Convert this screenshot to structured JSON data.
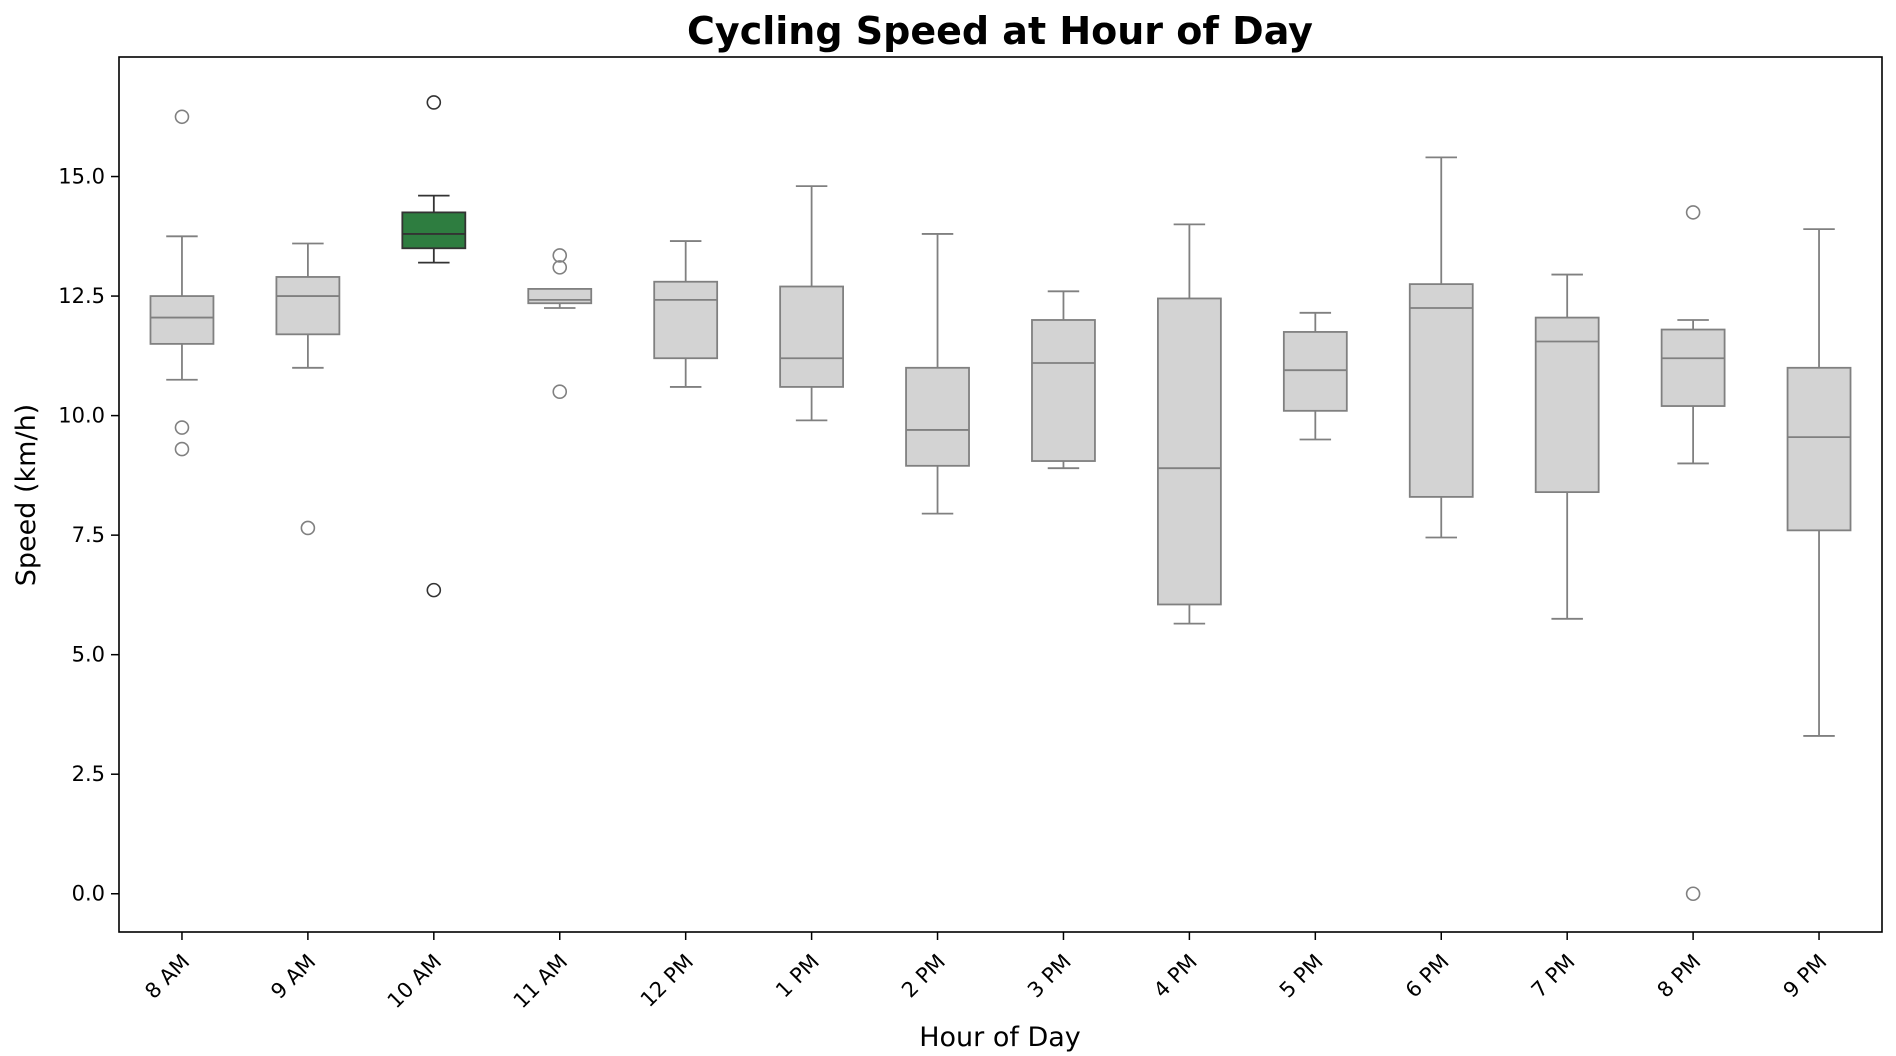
{
  "chart_data": {
    "type": "box",
    "title": "Cycling Speed at Hour of Day",
    "xlabel": "Hour of Day",
    "ylabel": "Speed (km/h)",
    "ylim": [
      -0.8,
      17.5
    ],
    "yticks": [
      "0.0",
      "2.5",
      "5.0",
      "7.5",
      "10.0",
      "12.5",
      "15.0"
    ],
    "grid": false,
    "colors": {
      "default_box": "#d3d3d3",
      "default_line": "#808080",
      "highlight_box": "#2e7d40",
      "highlight_line": "#333333"
    },
    "highlight_category": "10 AM",
    "categories": [
      "8 AM",
      "9 AM",
      "10 AM",
      "11 AM",
      "12 PM",
      "1 PM",
      "2 PM",
      "3 PM",
      "4 PM",
      "5 PM",
      "6 PM",
      "7 PM",
      "8 PM",
      "9 PM"
    ],
    "boxes": [
      {
        "category": "8 AM",
        "whisker_low": 10.75,
        "q1": 11.5,
        "median": 12.05,
        "q3": 12.5,
        "whisker_high": 13.75,
        "outliers": [
          16.25,
          9.75,
          9.3
        ]
      },
      {
        "category": "9 AM",
        "whisker_low": 11.0,
        "q1": 11.7,
        "median": 12.5,
        "q3": 12.9,
        "whisker_high": 13.6,
        "outliers": [
          7.65
        ]
      },
      {
        "category": "10 AM",
        "whisker_low": 13.2,
        "q1": 13.5,
        "median": 13.8,
        "q3": 14.25,
        "whisker_high": 14.6,
        "outliers": [
          16.55,
          6.35
        ]
      },
      {
        "category": "11 AM",
        "whisker_low": 12.25,
        "q1": 12.35,
        "median": 12.42,
        "q3": 12.65,
        "whisker_high": 12.65,
        "outliers": [
          13.35,
          13.1,
          10.5
        ]
      },
      {
        "category": "12 PM",
        "whisker_low": 10.6,
        "q1": 11.2,
        "median": 12.42,
        "q3": 12.8,
        "whisker_high": 13.65,
        "outliers": []
      },
      {
        "category": "1 PM",
        "whisker_low": 9.9,
        "q1": 10.6,
        "median": 11.2,
        "q3": 12.7,
        "whisker_high": 14.8,
        "outliers": []
      },
      {
        "category": "2 PM",
        "whisker_low": 7.95,
        "q1": 8.95,
        "median": 9.7,
        "q3": 11.0,
        "whisker_high": 13.8,
        "outliers": []
      },
      {
        "category": "3 PM",
        "whisker_low": 8.9,
        "q1": 9.05,
        "median": 11.1,
        "q3": 12.0,
        "whisker_high": 12.6,
        "outliers": []
      },
      {
        "category": "4 PM",
        "whisker_low": 5.65,
        "q1": 6.05,
        "median": 8.9,
        "q3": 12.45,
        "whisker_high": 14.0,
        "outliers": []
      },
      {
        "category": "5 PM",
        "whisker_low": 9.5,
        "q1": 10.1,
        "median": 10.95,
        "q3": 11.75,
        "whisker_high": 12.15,
        "outliers": []
      },
      {
        "category": "6 PM",
        "whisker_low": 7.45,
        "q1": 8.3,
        "median": 12.25,
        "q3": 12.75,
        "whisker_high": 15.4,
        "outliers": []
      },
      {
        "category": "7 PM",
        "whisker_low": 5.75,
        "q1": 8.4,
        "median": 11.55,
        "q3": 12.05,
        "whisker_high": 12.95,
        "outliers": []
      },
      {
        "category": "8 PM",
        "whisker_low": 9.0,
        "q1": 10.2,
        "median": 11.2,
        "q3": 11.8,
        "whisker_high": 12.0,
        "outliers": [
          14.25,
          0.0
        ]
      },
      {
        "category": "9 PM",
        "whisker_low": 3.3,
        "q1": 7.6,
        "median": 9.55,
        "q3": 11.0,
        "whisker_high": 13.9,
        "outliers": []
      }
    ]
  }
}
